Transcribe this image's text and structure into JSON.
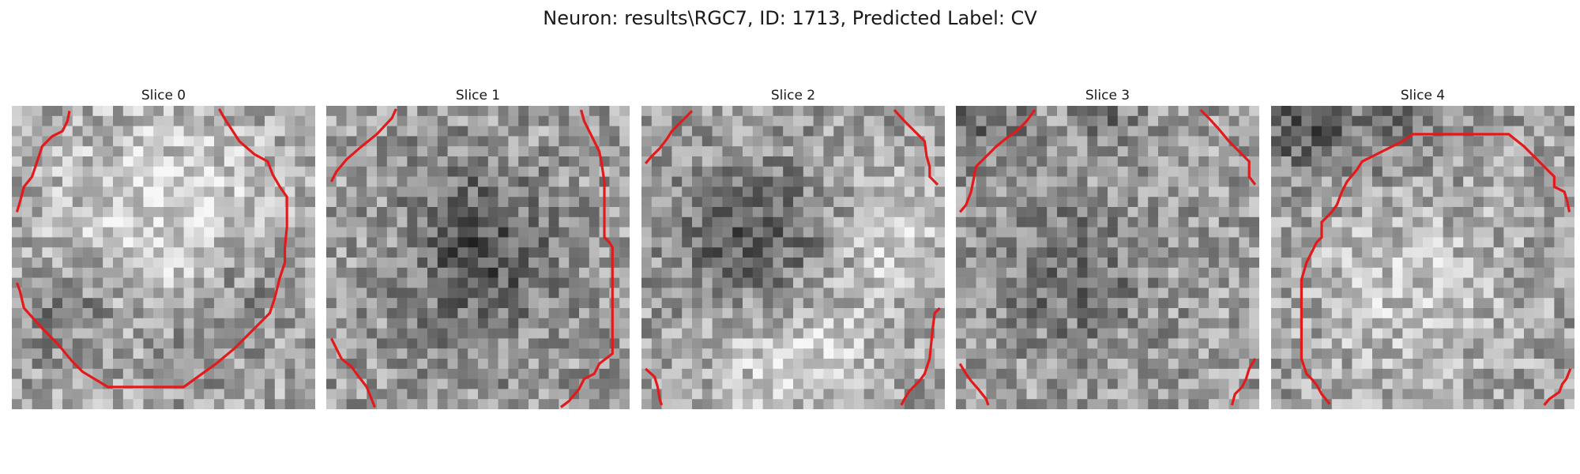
{
  "figure": {
    "title": "Neuron: results\\RGC7, ID: 1713, Predicted Label: CV"
  },
  "colors": {
    "contour": "#e31a1c"
  },
  "panels": [
    {
      "title": "Slice 0",
      "blobs": [
        [
          0.5,
          0.45,
          0.45,
          -0.25
        ],
        [
          0.2,
          0.65,
          0.2,
          0.22
        ],
        [
          0.75,
          0.62,
          0.2,
          0.18
        ],
        [
          0.55,
          0.8,
          0.2,
          0.12
        ]
      ]
    },
    {
      "title": "Slice 1",
      "blobs": [
        [
          0.45,
          0.42,
          0.25,
          0.25
        ],
        [
          0.5,
          0.6,
          0.3,
          0.12
        ],
        [
          0.3,
          0.45,
          0.2,
          -0.1
        ]
      ]
    },
    {
      "title": "Slice 2",
      "blobs": [
        [
          0.38,
          0.48,
          0.24,
          0.32
        ],
        [
          0.5,
          0.78,
          0.3,
          -0.22
        ],
        [
          0.85,
          0.4,
          0.2,
          -0.18
        ]
      ]
    },
    {
      "title": "Slice 3",
      "blobs": [
        [
          0.38,
          0.55,
          0.24,
          0.2
        ],
        [
          0.1,
          0.05,
          0.15,
          0.22
        ],
        [
          0.5,
          0.05,
          0.1,
          0.15
        ]
      ]
    },
    {
      "title": "Slice 4",
      "blobs": [
        [
          0.1,
          0.06,
          0.15,
          0.28
        ],
        [
          0.4,
          0.05,
          0.2,
          0.15
        ],
        [
          0.45,
          0.6,
          0.35,
          -0.15
        ]
      ]
    }
  ]
}
